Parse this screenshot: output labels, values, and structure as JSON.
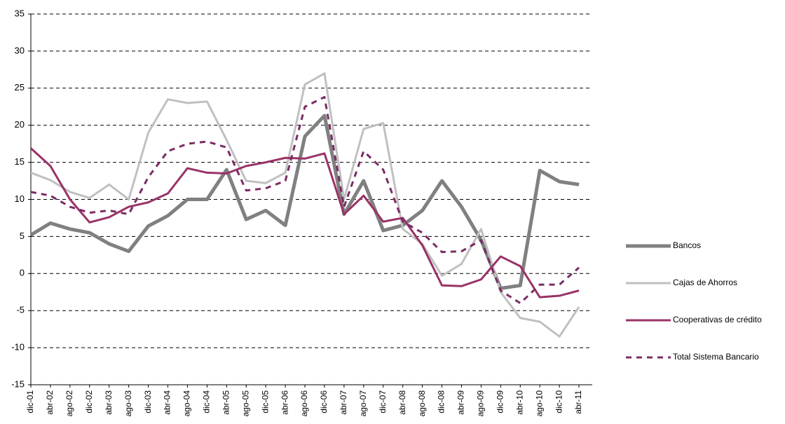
{
  "chart_data": {
    "type": "line",
    "categories": [
      "dic-01",
      "abr-02",
      "ago-02",
      "dic-02",
      "abr-03",
      "ago-03",
      "dic-03",
      "abr-04",
      "ago-04",
      "dic-04",
      "abr-05",
      "ago-05",
      "dic-05",
      "abr-06",
      "ago-06",
      "dic-06",
      "abr-07",
      "ago-07",
      "dic-07",
      "abr-08",
      "ago-08",
      "dic-08",
      "abr-09",
      "ago-09",
      "dic-09",
      "abr-10",
      "ago-10",
      "dic-10",
      "abr-11"
    ],
    "series": [
      {
        "name": "Bancos",
        "color": "#808080",
        "width": 5,
        "line_style": "solid",
        "values": [
          5.2,
          6.8,
          6.0,
          5.5,
          4,
          3,
          6.4,
          7.8,
          10,
          10,
          14,
          7.3,
          8.5,
          6.5,
          18.5,
          21.3,
          8,
          12.5,
          5.8,
          6.5,
          8.5,
          12.5,
          9,
          4.5,
          -2,
          -1.6,
          13.9,
          12.4,
          12
        ]
      },
      {
        "name": "Cajas de Ahorros",
        "color": "#c0c0c0",
        "width": 3,
        "line_style": "solid",
        "values": [
          13.6,
          12.6,
          11,
          10.2,
          12,
          10,
          19,
          23.5,
          23,
          23.2,
          18,
          12.5,
          12.2,
          13.6,
          25.5,
          27,
          10,
          19.5,
          20.3,
          6,
          4,
          -0.3,
          1.3,
          6,
          -2.5,
          -6,
          -6.5,
          -8.5,
          -4.5
        ]
      },
      {
        "name": "Cooperativas de crédito",
        "color": "#993366",
        "width": 3,
        "line_style": "solid",
        "values": [
          16.9,
          14.5,
          10,
          6.9,
          7.6,
          9,
          9.6,
          10.8,
          14.2,
          13.6,
          13.5,
          14.5,
          15,
          15.6,
          15.5,
          16.2,
          8,
          10.5,
          7,
          7.5,
          3.8,
          -1.6,
          -1.7,
          -0.8,
          2.3,
          1,
          -3.2,
          -3,
          -2.3
        ]
      },
      {
        "name": "Total Sistema Bancario",
        "color": "#7b2c64",
        "width": 3,
        "line_style": "dashed",
        "values": [
          11,
          10.5,
          9,
          8.2,
          8.5,
          8,
          13,
          16.5,
          17.5,
          17.8,
          17,
          11.2,
          11.5,
          12.5,
          22.5,
          23.8,
          9,
          16.5,
          14,
          7,
          5.5,
          2.9,
          3,
          4.5,
          -2.3,
          -4,
          -1.5,
          -1.5,
          0.8
        ]
      }
    ],
    "ylim": [
      -15,
      35
    ],
    "yticks": [
      -15,
      -10,
      -5,
      0,
      5,
      10,
      15,
      20,
      25,
      30,
      35
    ],
    "grid": true,
    "legend": "right"
  }
}
